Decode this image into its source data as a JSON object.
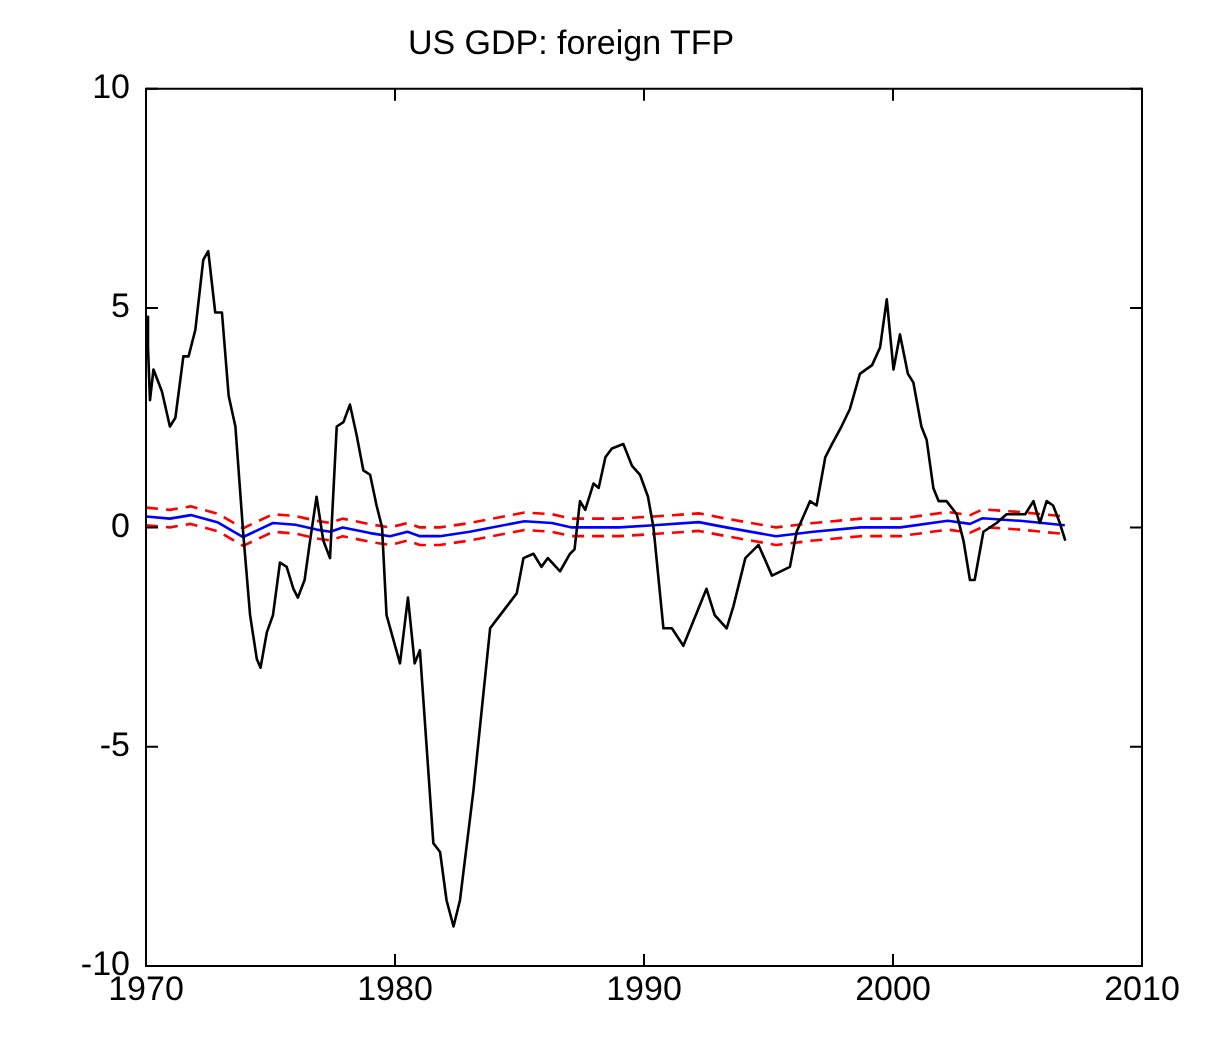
{
  "chart_data": {
    "type": "line",
    "title": "US GDP: foreign TFP",
    "xlim": [
      1970,
      2010
    ],
    "xticks": [
      1970,
      1980,
      1990,
      2000,
      2010
    ],
    "ylim": [
      -10,
      10
    ],
    "yticks": [
      -10,
      -5,
      0,
      5,
      10
    ],
    "grid": false,
    "legend": false,
    "marker": "none",
    "series": [
      {
        "color": "#000000",
        "line_style": "solid",
        "x": [
          1970.0,
          1970.08,
          1970.16,
          1970.3,
          1970.64,
          1970.96,
          1971.18,
          1971.5,
          1971.71,
          1971.98,
          1972.3,
          1972.5,
          1972.78,
          1973.05,
          1973.32,
          1973.59,
          1973.9,
          1974.18,
          1974.45,
          1974.6,
          1974.85,
          1975.1,
          1975.38,
          1975.65,
          1975.92,
          1976.1,
          1976.37,
          1976.59,
          1976.85,
          1977.12,
          1977.39,
          1977.66,
          1977.93,
          1978.19,
          1978.46,
          1978.73,
          1979.0,
          1979.26,
          1979.48,
          1979.66,
          1980.2,
          1980.52,
          1980.79,
          1981.0,
          1981.54,
          1981.81,
          1982.07,
          1982.35,
          1982.61,
          1983.15,
          1983.82,
          1984.22,
          1984.49,
          1984.89,
          1985.16,
          1985.56,
          1985.88,
          1986.14,
          1986.63,
          1987.03,
          1987.21,
          1987.43,
          1987.64,
          1987.97,
          1988.18,
          1988.45,
          1988.71,
          1989.17,
          1989.52,
          1989.84,
          1990.16,
          1990.38,
          1990.78,
          1991.12,
          1991.58,
          1992.51,
          1992.84,
          1993.32,
          1993.59,
          1994.07,
          1994.6,
          1995.14,
          1995.86,
          1996.13,
          1996.67,
          1996.93,
          1997.28,
          1997.55,
          1997.93,
          1998.27,
          1998.67,
          1999.16,
          1999.48,
          1999.75,
          2000.02,
          2000.28,
          2000.6,
          2000.82,
          2001.14,
          2001.35,
          2001.62,
          2001.83,
          2002.15,
          2002.56,
          2002.83,
          2003.09,
          2003.28,
          2003.63,
          2004.16,
          2004.56,
          2004.97,
          2005.31,
          2005.64,
          2005.9,
          2006.17,
          2006.43,
          2006.7,
          2006.92
        ],
        "values": [
          4.8,
          4.1,
          2.9,
          3.6,
          3.1,
          2.3,
          2.5,
          3.9,
          3.9,
          4.5,
          6.1,
          6.3,
          4.9,
          4.9,
          3.0,
          2.3,
          -0.1,
          -2.0,
          -3.0,
          -3.2,
          -2.4,
          -2.0,
          -0.8,
          -0.9,
          -1.4,
          -1.6,
          -1.2,
          -0.3,
          0.7,
          -0.3,
          -0.7,
          2.3,
          2.4,
          2.8,
          2.1,
          1.3,
          1.2,
          0.5,
          0.0,
          -2.0,
          -3.1,
          -1.6,
          -3.1,
          -2.8,
          -7.2,
          -7.4,
          -8.5,
          -9.1,
          -8.5,
          -6.0,
          -2.3,
          -2.0,
          -1.8,
          -1.5,
          -0.7,
          -0.6,
          -0.9,
          -0.7,
          -1.0,
          -0.6,
          -0.5,
          0.6,
          0.4,
          1.0,
          0.9,
          1.6,
          1.8,
          1.9,
          1.4,
          1.2,
          0.7,
          0.0,
          -2.3,
          -2.3,
          -2.7,
          -1.4,
          -2.0,
          -2.3,
          -1.8,
          -0.7,
          -0.4,
          -1.1,
          -0.9,
          -0.1,
          0.6,
          0.5,
          1.6,
          1.9,
          2.3,
          2.7,
          3.5,
          3.7,
          4.1,
          5.2,
          3.6,
          4.4,
          3.5,
          3.3,
          2.3,
          2.0,
          0.9,
          0.6,
          0.6,
          0.3,
          -0.3,
          -1.2,
          -1.2,
          -0.1,
          0.1,
          0.3,
          0.3,
          0.3,
          0.6,
          0.1,
          0.6,
          0.5,
          0.1,
          -0.3
        ]
      },
      {
        "color": "#0000ff",
        "line_style": "solid",
        "x": [
          1970.0,
          1970.96,
          1971.8,
          1972.9,
          1973.9,
          1975.1,
          1976.0,
          1976.85,
          1977.4,
          1977.9,
          1979.0,
          1979.8,
          1980.5,
          1981.0,
          1981.8,
          1983.0,
          1985.2,
          1986.3,
          1987.1,
          1989.0,
          1990.4,
          1992.2,
          1993.3,
          1995.3,
          1996.8,
          1998.7,
          2000.3,
          2002.2,
          2003.1,
          2003.6,
          2005.1,
          2006.9
        ],
        "values": [
          0.25,
          0.2,
          0.28,
          0.11,
          -0.22,
          0.1,
          0.06,
          -0.05,
          -0.1,
          0.0,
          -0.13,
          -0.2,
          -0.1,
          -0.2,
          -0.2,
          -0.1,
          0.14,
          0.1,
          0.0,
          0.0,
          0.05,
          0.12,
          0.0,
          -0.2,
          -0.1,
          0.0,
          0.0,
          0.15,
          0.08,
          0.21,
          0.15,
          0.05
        ]
      },
      {
        "color": "#ff0000",
        "line_style": "dashed",
        "x": [
          1970.0,
          1970.96,
          1971.8,
          1972.9,
          1973.9,
          1975.1,
          1976.0,
          1976.85,
          1977.4,
          1977.9,
          1979.0,
          1979.8,
          1980.5,
          1981.0,
          1981.8,
          1983.0,
          1985.2,
          1986.3,
          1987.1,
          1989.0,
          1990.4,
          1992.2,
          1993.3,
          1995.3,
          1996.8,
          1998.7,
          2000.3,
          2002.2,
          2003.1,
          2003.6,
          2005.1,
          2006.9
        ],
        "values": [
          0.45,
          0.4,
          0.48,
          0.31,
          -0.02,
          0.3,
          0.26,
          0.15,
          0.1,
          0.2,
          0.07,
          0.0,
          0.1,
          0.0,
          0.0,
          0.1,
          0.34,
          0.3,
          0.2,
          0.2,
          0.25,
          0.32,
          0.2,
          0.0,
          0.1,
          0.2,
          0.2,
          0.35,
          0.28,
          0.41,
          0.35,
          0.25
        ]
      },
      {
        "color": "#ff0000",
        "line_style": "dashed",
        "x": [
          1970.0,
          1970.96,
          1971.8,
          1972.9,
          1973.9,
          1975.1,
          1976.0,
          1976.85,
          1977.4,
          1977.9,
          1979.0,
          1979.8,
          1980.5,
          1981.0,
          1981.8,
          1983.0,
          1985.2,
          1986.3,
          1987.1,
          1989.0,
          1990.4,
          1992.2,
          1993.3,
          1995.3,
          1996.8,
          1998.7,
          2000.3,
          2002.2,
          2003.1,
          2003.6,
          2005.1,
          2006.9
        ],
        "values": [
          0.05,
          0.0,
          0.08,
          -0.09,
          -0.42,
          -0.1,
          -0.14,
          -0.25,
          -0.3,
          -0.2,
          -0.33,
          -0.4,
          -0.3,
          -0.4,
          -0.4,
          -0.3,
          -0.06,
          -0.1,
          -0.2,
          -0.2,
          -0.15,
          -0.08,
          -0.2,
          -0.4,
          -0.3,
          -0.2,
          -0.2,
          -0.05,
          -0.12,
          0.01,
          -0.05,
          -0.15
        ]
      }
    ]
  }
}
